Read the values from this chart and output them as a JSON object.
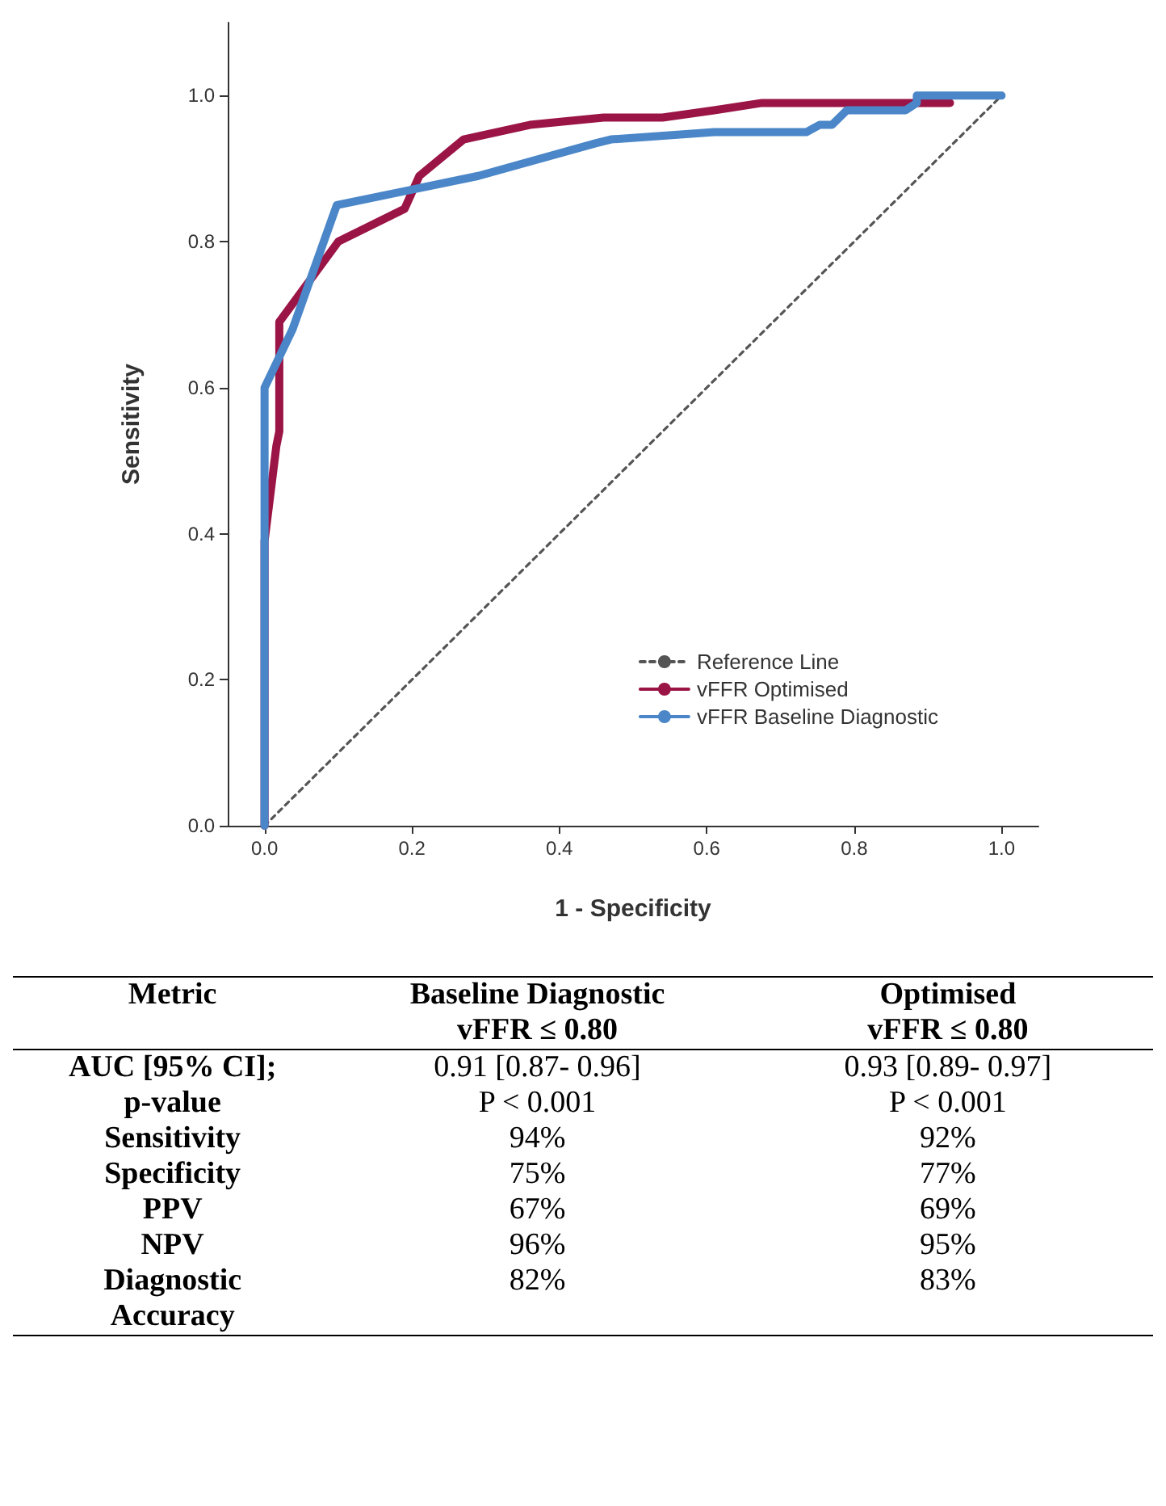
{
  "chart_data": [
    {
      "type": "line",
      "xlabel": "1 - Specificity",
      "ylabel": "Sensitivity",
      "xlim": [
        -0.05,
        1.05
      ],
      "ylim": [
        0,
        1.1
      ],
      "xticks": [
        {
          "value": 0,
          "label": "0.0"
        },
        0.2,
        0.4,
        0.6,
        0.8,
        {
          "value": 1,
          "label": "1.0"
        }
      ],
      "yticks": [
        {
          "value": 0,
          "label": "0.0"
        },
        0.2,
        0.4,
        0.6,
        0.8,
        {
          "value": 1,
          "label": "1.0"
        }
      ],
      "grid": false,
      "legend": "bottom right",
      "marker": "none",
      "series": [
        {
          "name": "Reference Line",
          "color": "#555555",
          "line_style": "dotted",
          "x": [
            0,
            1
          ],
          "values": [
            0,
            1
          ]
        },
        {
          "name": "vFFR Optimised",
          "color": "#9b1446",
          "line_style": "solid",
          "x": [
            0,
            0,
            0.016,
            0.02,
            0.02,
            0.1,
            0.19,
            0.21,
            0.27,
            0.36,
            0.46,
            0.54,
            0.61,
            0.675,
            0.93
          ],
          "values": [
            0,
            0.39,
            0.52,
            0.54,
            0.69,
            0.8,
            0.845,
            0.89,
            0.94,
            0.96,
            0.97,
            0.97,
            0.98,
            0.99,
            0.99
          ]
        },
        {
          "name": "vFFR Baseline Diagnostic",
          "color": "#4a86c8",
          "line_style": "solid",
          "x": [
            0,
            0,
            0.038,
            0.098,
            0.29,
            0.45,
            0.47,
            0.61,
            0.735,
            0.753,
            0.77,
            0.79,
            0.87,
            0.885,
            0.885,
            1.0
          ],
          "values": [
            0,
            0.6,
            0.68,
            0.85,
            0.89,
            0.935,
            0.94,
            0.95,
            0.95,
            0.96,
            0.96,
            0.98,
            0.98,
            0.99,
            1.0,
            1.0
          ]
        }
      ]
    },
    {
      "type": "other",
      "annotations": [
        "Metric",
        "Baseline Diagnostic\nvFFR ≤ 0.80",
        "Optimised\nvFFR ≤ 0.80",
        "AUC [95% CI];\np-value",
        "0.91 [0.87- 0.96]\nP < 0.001",
        "0.93 [0.89- 0.97]\nP < 0.001",
        "Sensitivity",
        "94%",
        "92%",
        "Specificity",
        "75%",
        "77%",
        "PPV",
        "67%",
        "69%",
        "NPV",
        "96%",
        "95%",
        "Diagnostic\nAccuracy",
        "82%",
        "83%"
      ]
    }
  ]
}
